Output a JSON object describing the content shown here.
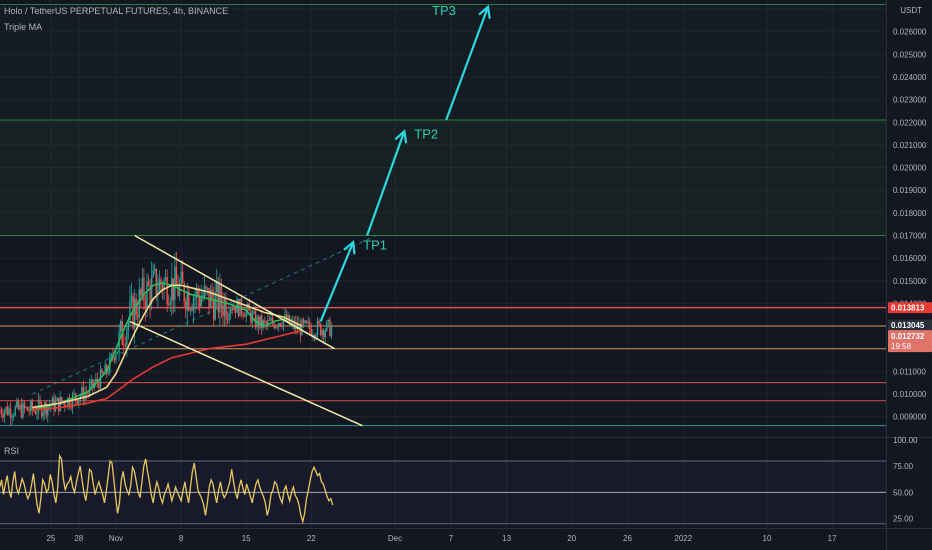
{
  "header": {
    "symbol": "Holo / TetherUS PERPETUAL FUTURES, 4h, BINANCE",
    "indicator": "Triple MA",
    "unit": "USDT"
  },
  "rsi_panel": {
    "label": "RSI"
  },
  "colors": {
    "background": "#131722",
    "grid": "#1e222d",
    "axis_text": "#b2b5be",
    "candle_up": "#26a69a",
    "candle_down": "#ef5350",
    "ma_fast": "#2ebd5b",
    "ma_mid": "#f0d98a",
    "ma_slow": "#e53935",
    "trendline": "#f5eaa8",
    "arrow": "#2bd8e0",
    "tp_label": "#2ccfb4",
    "green_level": "#2b8a3e",
    "red_level": "#ef5350",
    "orange_level": "#e8a066",
    "teal_level": "#26a69a",
    "rsi_line": "#e6c85e"
  },
  "chart_data": {
    "type": "candlestick",
    "title": "Holo / TetherUS PERPETUAL FUTURES, 4h, BINANCE",
    "price_axis": {
      "unit": "USDT",
      "range": [
        0.0081,
        0.0274
      ],
      "ticks": [
        "0.027000",
        "0.026000",
        "0.025000",
        "0.024000",
        "0.023000",
        "0.022000",
        "0.021000",
        "0.020000",
        "0.019000",
        "0.018000",
        "0.017000",
        "0.016000",
        "0.015000",
        "0.014000",
        "0.013000",
        "0.012000",
        "0.011000",
        "0.010000",
        "0.009000",
        "0.008000"
      ],
      "tick_values": [
        0.027,
        0.026,
        0.025,
        0.024,
        0.023,
        0.022,
        0.021,
        0.02,
        0.019,
        0.018,
        0.017,
        0.016,
        0.015,
        0.014,
        0.013,
        0.012,
        0.011,
        0.01,
        0.009,
        0.008
      ]
    },
    "time_axis": {
      "tick_labels": [
        "25",
        "28",
        "Nov",
        "8",
        "15",
        "22",
        "Dec",
        "7",
        "13",
        "20",
        "26",
        "2022",
        "10",
        "17"
      ],
      "tick_days": [
        -7,
        -4,
        0,
        7,
        14,
        21,
        30,
        36,
        42,
        49,
        55,
        61,
        70,
        77
      ]
    },
    "price_labels": [
      {
        "text": "0.013813",
        "value": 0.013813,
        "style": "red"
      },
      {
        "text": "0.013045",
        "value": 0.013045,
        "style": "dark"
      },
      {
        "text": "0.012732",
        "value": 0.012732,
        "style": "red"
      },
      {
        "text": "19:58",
        "value": 0.012732,
        "style": "red-sub"
      }
    ],
    "horizontal_levels": [
      {
        "value": 0.0272,
        "color": "green"
      },
      {
        "value": 0.0221,
        "color": "green"
      },
      {
        "value": 0.017,
        "color": "green"
      },
      {
        "value": 0.013813,
        "color": "red"
      },
      {
        "value": 0.013,
        "color": "orange"
      },
      {
        "value": 0.012,
        "color": "orange"
      },
      {
        "value": 0.0105,
        "color": "red"
      },
      {
        "value": 0.0097,
        "color": "red"
      },
      {
        "value": 0.0086,
        "color": "teal"
      }
    ],
    "targets": [
      {
        "name": "TP1",
        "from": [
          22.0,
          0.0132
        ],
        "to": [
          25.5,
          0.0167
        ]
      },
      {
        "name": "TP2",
        "from": [
          27.0,
          0.017
        ],
        "to": [
          31.0,
          0.0216
        ]
      },
      {
        "name": "TP3",
        "from": [
          35.5,
          0.0221
        ],
        "to": [
          40.0,
          0.0271
        ]
      }
    ],
    "wedge": {
      "upper": [
        [
          2.0,
          0.017
        ],
        [
          23.5,
          0.012
        ]
      ],
      "lower": [
        [
          1.5,
          0.0132
        ],
        [
          26.5,
          0.0086
        ]
      ],
      "dashed": [
        [
          -9.0,
          0.01
        ],
        [
          28.0,
          0.017
        ]
      ]
    },
    "moving_averages": [
      {
        "name": "fast",
        "points": [
          [
            -9,
            0.0093
          ],
          [
            -6,
            0.0096
          ],
          [
            -3,
            0.0101
          ],
          [
            -1,
            0.011
          ],
          [
            0,
            0.012
          ],
          [
            1,
            0.013
          ],
          [
            2,
            0.0138
          ],
          [
            3,
            0.0144
          ],
          [
            4,
            0.0148
          ],
          [
            5,
            0.0149
          ],
          [
            6,
            0.0148
          ],
          [
            7,
            0.0146
          ],
          [
            8,
            0.0144
          ],
          [
            9,
            0.0143
          ],
          [
            10,
            0.0142
          ],
          [
            12,
            0.014
          ],
          [
            14,
            0.0137
          ],
          [
            15,
            0.0132
          ],
          [
            16,
            0.013
          ],
          [
            17,
            0.0132
          ],
          [
            18,
            0.0133
          ],
          [
            19,
            0.013
          ],
          [
            20,
            0.0129
          ]
        ]
      },
      {
        "name": "mid",
        "points": [
          [
            -9,
            0.0094
          ],
          [
            -6,
            0.0096
          ],
          [
            -3,
            0.0099
          ],
          [
            -1,
            0.0103
          ],
          [
            0,
            0.0109
          ],
          [
            1,
            0.0118
          ],
          [
            2,
            0.0127
          ],
          [
            3,
            0.0135
          ],
          [
            4,
            0.0142
          ],
          [
            5,
            0.0146
          ],
          [
            6,
            0.0148
          ],
          [
            7,
            0.0148
          ],
          [
            8,
            0.0147
          ],
          [
            10,
            0.0145
          ],
          [
            12,
            0.0142
          ],
          [
            14,
            0.0139
          ],
          [
            16,
            0.0136
          ],
          [
            18,
            0.0134
          ],
          [
            20,
            0.013
          ]
        ]
      },
      {
        "name": "slow",
        "points": [
          [
            -9,
            0.0093
          ],
          [
            -6,
            0.0094
          ],
          [
            -3,
            0.0096
          ],
          [
            -1,
            0.0098
          ],
          [
            0,
            0.0101
          ],
          [
            2,
            0.0107
          ],
          [
            4,
            0.0112
          ],
          [
            6,
            0.0116
          ],
          [
            8,
            0.0118
          ],
          [
            10,
            0.012
          ],
          [
            12,
            0.0121
          ],
          [
            14,
            0.0122
          ],
          [
            16,
            0.0124
          ],
          [
            18,
            0.0126
          ],
          [
            20,
            0.0128
          ]
        ]
      }
    ],
    "rsi": {
      "name": "RSI",
      "range": [
        16,
        100
      ],
      "ticks": [
        100,
        75,
        50,
        25
      ],
      "tick_labels": [
        "100.00",
        "75.00",
        "50.00",
        "25.00"
      ],
      "levels": [
        80,
        50,
        20
      ],
      "values": [
        55,
        62,
        48,
        58,
        66,
        52,
        45,
        60,
        70,
        54,
        49,
        56,
        63,
        58,
        50,
        44,
        48,
        57,
        68,
        52,
        38,
        30,
        45,
        62,
        58,
        50,
        53,
        67,
        60,
        48,
        40,
        55,
        85,
        82,
        63,
        52,
        58,
        60,
        65,
        55,
        50,
        60,
        68,
        75,
        62,
        50,
        42,
        55,
        72,
        70,
        58,
        48,
        55,
        60,
        54,
        48,
        40,
        52,
        66,
        80,
        78,
        62,
        45,
        30,
        40,
        62,
        70,
        58,
        52,
        48,
        56,
        74,
        70,
        60,
        50,
        45,
        60,
        75,
        82,
        70,
        60,
        48,
        40,
        52,
        60,
        54,
        45,
        40,
        48,
        52,
        58,
        50,
        42,
        48,
        55,
        50,
        46,
        42,
        52,
        60,
        48,
        40,
        56,
        70,
        78,
        65,
        52,
        48,
        44,
        38,
        28,
        40,
        55,
        62,
        58,
        48,
        40,
        52,
        60,
        50,
        45,
        48,
        54,
        60,
        72,
        60,
        50,
        44,
        55,
        62,
        54,
        48,
        58,
        52,
        46,
        40,
        50,
        58,
        62,
        55,
        50,
        46,
        40,
        28,
        35,
        48,
        52,
        60,
        58,
        50,
        44,
        40,
        52,
        56,
        48,
        42,
        50,
        55,
        47,
        44,
        38,
        28,
        22,
        30,
        44,
        52,
        62,
        70,
        74,
        70,
        66,
        68,
        60,
        58,
        52,
        46,
        42,
        44,
        38
      ]
    }
  }
}
